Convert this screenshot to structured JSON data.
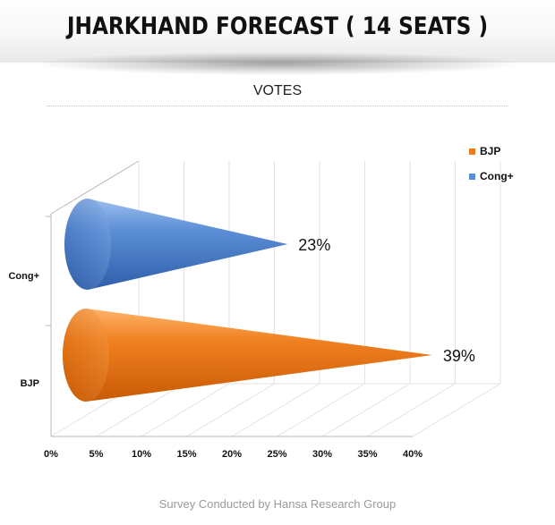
{
  "header": {
    "title": "JHARKHAND FORECAST ( 14 SEATS )"
  },
  "footer": {
    "text": "Survey Conducted by Hansa Research Group"
  },
  "chart_data": {
    "type": "bar",
    "orientation": "horizontal",
    "shape": "cone",
    "title": "VOTES",
    "categories": [
      "BJP",
      "Cong+"
    ],
    "values": [
      39,
      23
    ],
    "value_labels": [
      "39%",
      "23%"
    ],
    "colors": [
      "#f07b1a",
      "#5b8ed6"
    ],
    "xlim": [
      0,
      40
    ],
    "xticks": [
      "0%",
      "5%",
      "10%",
      "15%",
      "20%",
      "25%",
      "30%",
      "35%",
      "40%"
    ],
    "grid": true,
    "legend": {
      "placement": "top-right",
      "entries": [
        {
          "name": "BJP",
          "color": "#f07b1a"
        },
        {
          "name": "Cong+",
          "color": "#5b8ed6"
        }
      ]
    }
  }
}
